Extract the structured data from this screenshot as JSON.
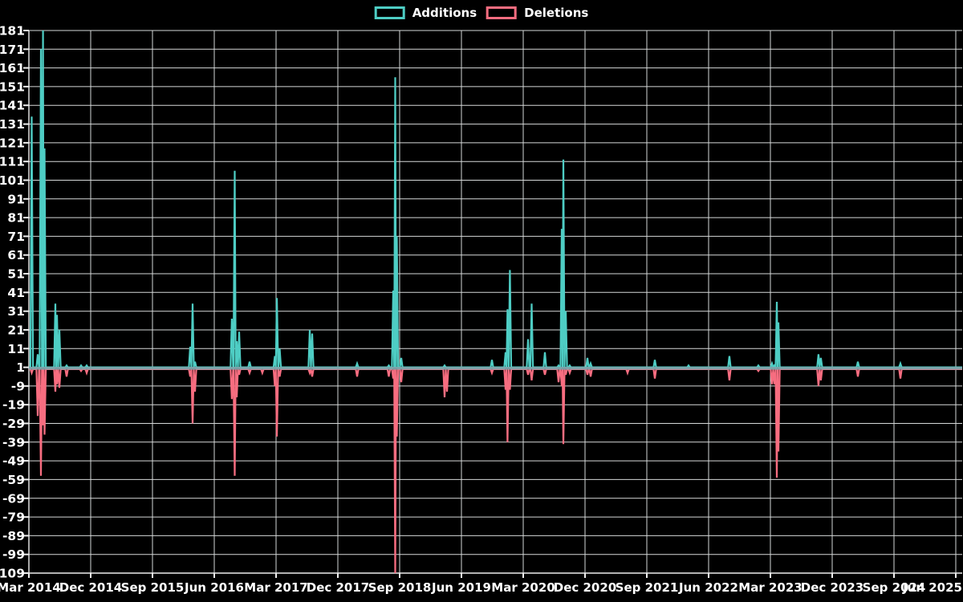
{
  "page": {
    "background": "#000000"
  },
  "legend": {
    "items": [
      {
        "label": "Additions",
        "color": "#4ECDC4"
      },
      {
        "label": "Deletions",
        "color": "#F76D80"
      }
    ]
  },
  "chart_data": {
    "type": "line",
    "title": "",
    "legend_position": "top-center",
    "grid": true,
    "background": "#000000",
    "text_color": "#FFFFFF",
    "grid_color": "#D5D8D8",
    "axis_color": "#EEEEEE",
    "baseline_band_color": "#7FA3AB",
    "y_min": -109,
    "y_max": 181,
    "y_ticks": [
      181,
      171,
      161,
      151,
      141,
      131,
      121,
      111,
      101,
      91,
      81,
      71,
      61,
      51,
      41,
      31,
      21,
      11,
      1,
      -9,
      -19,
      -29,
      -39,
      -49,
      -59,
      -69,
      -79,
      -89,
      -99,
      -109
    ],
    "x_tick_labels": [
      "Mar 2014",
      "Dec 2014",
      "Sep 2015",
      "Jun 2016",
      "Mar 2017",
      "Dec 2017",
      "Sep 2018",
      "Jun 2019",
      "Mar 2020",
      "Dec 2020",
      "Sep 2021",
      "Jun 2022",
      "Mar 2023",
      "Dec 2023",
      "Sep 2024",
      "Jun 2025"
    ],
    "series": [
      {
        "name": "Additions",
        "color": "#4ECDC4",
        "baseline": 1
      },
      {
        "name": "Deletions",
        "color": "#F76D80",
        "baseline": 0
      }
    ],
    "events": [
      {
        "date": "Mar 2014",
        "pos": 0.003,
        "additions": 135,
        "deletions": -2
      },
      {
        "date": "Apr 2014",
        "pos": 0.0095,
        "additions": 8,
        "deletions": -25
      },
      {
        "date": "Apr 2014",
        "pos": 0.013,
        "additions": 171,
        "deletions": -57
      },
      {
        "date": "May 2014",
        "pos": 0.0152,
        "additions": 181,
        "deletions": -30
      },
      {
        "date": "May 2014",
        "pos": 0.0169,
        "additions": 118,
        "deletions": -35
      },
      {
        "date": "Jul 2014",
        "pos": 0.0286,
        "additions": 35,
        "deletions": -12
      },
      {
        "date": "Jul 2014",
        "pos": 0.0303,
        "additions": 29,
        "deletions": -8
      },
      {
        "date": "Jul 2014",
        "pos": 0.0329,
        "additions": 21,
        "deletions": -10
      },
      {
        "date": "Aug 2014",
        "pos": 0.0407,
        "additions": 2,
        "deletions": -4
      },
      {
        "date": "Oct 2014",
        "pos": 0.0563,
        "additions": 2,
        "deletions": -1
      },
      {
        "date": "Nov 2014",
        "pos": 0.0623,
        "additions": 2,
        "deletions": -2
      },
      {
        "date": "Feb 2016",
        "pos": 0.174,
        "additions": 12,
        "deletions": -4
      },
      {
        "date": "Mar 2016",
        "pos": 0.1766,
        "additions": 35,
        "deletions": -29
      },
      {
        "date": "Mar 2016",
        "pos": 0.1792,
        "additions": 4,
        "deletions": -12
      },
      {
        "date": "Aug 2016",
        "pos": 0.219,
        "additions": 27,
        "deletions": -16
      },
      {
        "date": "Sep 2016",
        "pos": 0.2221,
        "additions": 106,
        "deletions": -57
      },
      {
        "date": "Sep 2016",
        "pos": 0.2242,
        "additions": 15,
        "deletions": -15
      },
      {
        "date": "Sep 2016",
        "pos": 0.2268,
        "additions": 20,
        "deletions": -3
      },
      {
        "date": "Nov 2016",
        "pos": 0.2381,
        "additions": 4,
        "deletions": -2
      },
      {
        "date": "Jan 2017",
        "pos": 0.2519,
        "additions": 1,
        "deletions": -2
      },
      {
        "date": "Feb 2017",
        "pos": 0.2654,
        "additions": 7,
        "deletions": -9
      },
      {
        "date": "Mar 2017",
        "pos": 0.2675,
        "additions": 38,
        "deletions": -36
      },
      {
        "date": "Mar 2017",
        "pos": 0.2706,
        "additions": 11,
        "deletions": -4
      },
      {
        "date": "Jul 2017",
        "pos": 0.303,
        "additions": 21,
        "deletions": -2
      },
      {
        "date": "Aug 2017",
        "pos": 0.3056,
        "additions": 19,
        "deletions": -4
      },
      {
        "date": "Feb 2018",
        "pos": 0.3541,
        "additions": 3,
        "deletions": -4
      },
      {
        "date": "Jul 2018",
        "pos": 0.3883,
        "additions": 2,
        "deletions": -4
      },
      {
        "date": "Aug 2018",
        "pos": 0.3931,
        "additions": 42,
        "deletions": -5
      },
      {
        "date": "Aug 2018",
        "pos": 0.3952,
        "additions": 156,
        "deletions": -109
      },
      {
        "date": "Sep 2018",
        "pos": 0.397,
        "additions": 71,
        "deletions": -36
      },
      {
        "date": "Sep 2018",
        "pos": 0.4017,
        "additions": 6,
        "deletions": -7
      },
      {
        "date": "Mar 2019",
        "pos": 0.4485,
        "additions": 2,
        "deletions": -15
      },
      {
        "date": "Apr 2019",
        "pos": 0.4511,
        "additions": 1,
        "deletions": -12
      },
      {
        "date": "Oct 2019",
        "pos": 0.4996,
        "additions": 5,
        "deletions": -2
      },
      {
        "date": "Dec 2019",
        "pos": 0.5143,
        "additions": 9,
        "deletions": -11
      },
      {
        "date": "Jan 2020",
        "pos": 0.5164,
        "additions": 32,
        "deletions": -39
      },
      {
        "date": "Jan 2020",
        "pos": 0.519,
        "additions": 53,
        "deletions": -11
      },
      {
        "date": "Mar 2020",
        "pos": 0.5385,
        "additions": 16,
        "deletions": -3
      },
      {
        "date": "Apr 2020",
        "pos": 0.5424,
        "additions": 35,
        "deletions": -6
      },
      {
        "date": "Jun 2020",
        "pos": 0.5567,
        "additions": 9,
        "deletions": -3
      },
      {
        "date": "Aug 2020",
        "pos": 0.5714,
        "additions": 2,
        "deletions": -7
      },
      {
        "date": "Aug 2020",
        "pos": 0.5749,
        "additions": 75,
        "deletions": -9
      },
      {
        "date": "Sep 2020",
        "pos": 0.5766,
        "additions": 112,
        "deletions": -40
      },
      {
        "date": "Sep 2020",
        "pos": 0.5792,
        "additions": 31,
        "deletions": -3
      },
      {
        "date": "Oct 2020",
        "pos": 0.5835,
        "additions": 2,
        "deletions": -2
      },
      {
        "date": "Dec 2020",
        "pos": 0.6026,
        "additions": 6,
        "deletions": -3
      },
      {
        "date": "Jan 2021",
        "pos": 0.6061,
        "additions": 3,
        "deletions": -4
      },
      {
        "date": "Jun 2021",
        "pos": 0.6459,
        "additions": 1,
        "deletions": -2
      },
      {
        "date": "Oct 2021",
        "pos": 0.6753,
        "additions": 5,
        "deletions": -5
      },
      {
        "date": "Mar 2022",
        "pos": 0.7117,
        "additions": 2,
        "deletions": 0
      },
      {
        "date": "Sep 2022",
        "pos": 0.7558,
        "additions": 7,
        "deletions": -6
      },
      {
        "date": "Jan 2023",
        "pos": 0.787,
        "additions": 2,
        "deletions": -1
      },
      {
        "date": "Mar 2023",
        "pos": 0.8017,
        "additions": 3,
        "deletions": -8
      },
      {
        "date": "Mar 2023",
        "pos": 0.8043,
        "additions": 2,
        "deletions": -8
      },
      {
        "date": "Mar 2023",
        "pos": 0.8069,
        "additions": 36,
        "deletions": -58
      },
      {
        "date": "Apr 2023",
        "pos": 0.8087,
        "additions": 25,
        "deletions": -44
      },
      {
        "date": "Oct 2023",
        "pos": 0.8519,
        "additions": 8,
        "deletions": -9
      },
      {
        "date": "Nov 2023",
        "pos": 0.8545,
        "additions": 6,
        "deletions": -6
      },
      {
        "date": "Mar 2024",
        "pos": 0.8944,
        "additions": 4,
        "deletions": -4
      },
      {
        "date": "Oct 2024",
        "pos": 0.9403,
        "additions": 3,
        "deletions": -5
      }
    ]
  }
}
